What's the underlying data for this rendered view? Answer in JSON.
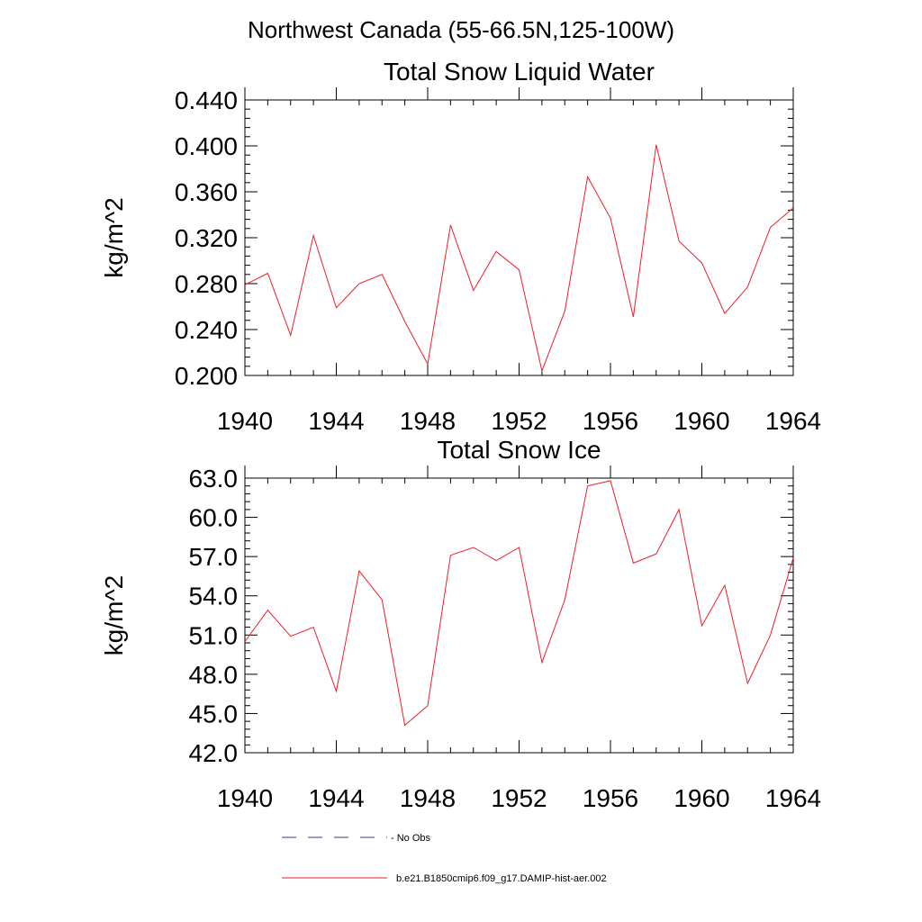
{
  "figure": {
    "title": "Northwest Canada (55-66.5N,125-100W)"
  },
  "legend": {
    "position": "bottom",
    "entries": [
      {
        "label": "No Obs",
        "style": "dashed",
        "color": "#3a3a8c"
      },
      {
        "label": "b.e21.B1850cmip6.f09_g17.DAMIP-hist-aer.002",
        "style": "solid",
        "color": "#e8202a"
      }
    ]
  },
  "chart_data": [
    {
      "type": "line",
      "title": "Total Snow Liquid Water",
      "xlabel": "",
      "ylabel": "kg/m^2",
      "xlim": [
        1940,
        1964
      ],
      "ylim": [
        0.2,
        0.44
      ],
      "xticks": [
        1940,
        1944,
        1948,
        1952,
        1956,
        1960,
        1964
      ],
      "xtick_labels": [
        "1940",
        "1944",
        "1948",
        "1952",
        "1956",
        "1960",
        "1964"
      ],
      "yticks": [
        0.2,
        0.24,
        0.28,
        0.32,
        0.36,
        0.4,
        0.44
      ],
      "ytick_labels": [
        "0.200",
        "0.240",
        "0.280",
        "0.320",
        "0.360",
        "0.400",
        "0.440"
      ],
      "grid": false,
      "x": [
        1940,
        1941,
        1942,
        1943,
        1944,
        1945,
        1946,
        1947,
        1948,
        1949,
        1950,
        1951,
        1952,
        1953,
        1954,
        1955,
        1956,
        1957,
        1958,
        1959,
        1960,
        1961,
        1962,
        1963,
        1964
      ],
      "series": [
        {
          "color": "#e8202a",
          "values": [
            0.279,
            0.289,
            0.235,
            0.322,
            0.259,
            0.28,
            0.288,
            0.247,
            0.21,
            0.331,
            0.274,
            0.308,
            0.292,
            0.204,
            0.256,
            0.373,
            0.337,
            0.251,
            0.401,
            0.317,
            0.298,
            0.254,
            0.277,
            0.329,
            0.346
          ]
        }
      ]
    },
    {
      "type": "line",
      "title": "Total Snow Ice",
      "xlabel": "",
      "ylabel": "kg/m^2",
      "xlim": [
        1940,
        1964
      ],
      "ylim": [
        42.0,
        63.0
      ],
      "xticks": [
        1940,
        1944,
        1948,
        1952,
        1956,
        1960,
        1964
      ],
      "xtick_labels": [
        "1940",
        "1944",
        "1948",
        "1952",
        "1956",
        "1960",
        "1964"
      ],
      "yticks": [
        42.0,
        45.0,
        48.0,
        51.0,
        54.0,
        57.0,
        60.0,
        63.0
      ],
      "ytick_labels": [
        "42.0",
        "45.0",
        "48.0",
        "51.0",
        "54.0",
        "57.0",
        "60.0",
        "63.0"
      ],
      "grid": false,
      "x": [
        1940,
        1941,
        1942,
        1943,
        1944,
        1945,
        1946,
        1947,
        1948,
        1949,
        1950,
        1951,
        1952,
        1953,
        1954,
        1955,
        1956,
        1957,
        1958,
        1959,
        1960,
        1961,
        1962,
        1963,
        1964
      ],
      "series": [
        {
          "color": "#e8202a",
          "values": [
            50.5,
            52.9,
            50.9,
            51.6,
            46.7,
            55.9,
            53.7,
            44.1,
            45.6,
            57.1,
            57.7,
            56.7,
            57.7,
            48.9,
            53.7,
            62.4,
            62.8,
            56.5,
            57.2,
            60.6,
            51.7,
            54.8,
            47.3,
            51.0,
            56.9
          ]
        }
      ]
    }
  ]
}
